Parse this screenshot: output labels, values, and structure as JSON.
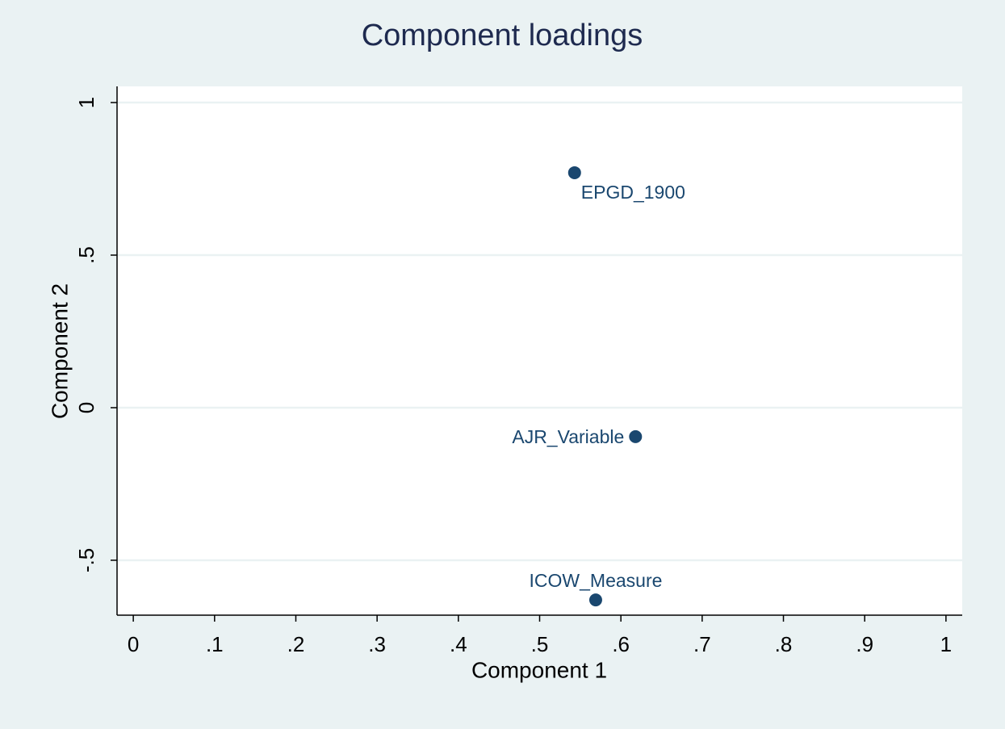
{
  "chart_data": {
    "type": "scatter",
    "title": "Component loadings",
    "x_label": "Component 1",
    "y_label": "Component 2",
    "labels": [
      "EPGD_1900",
      "AJR_Variable",
      "ICOW_Measure"
    ],
    "x": [
      0.543,
      0.618,
      0.569
    ],
    "values": [
      0.77,
      -0.095,
      -0.63
    ],
    "color": "#1a476f",
    "xlim": [
      -0.02,
      1.02
    ],
    "xticks": [
      0,
      {
        "value": 0.1,
        "label": ".1"
      },
      {
        "value": 0.2,
        "label": ".2"
      },
      {
        "value": 0.3,
        "label": ".3"
      },
      {
        "value": 0.4,
        "label": ".4"
      },
      {
        "value": 0.5,
        "label": ".5"
      },
      {
        "value": 0.6,
        "label": ".6"
      },
      {
        "value": 0.7,
        "label": ".7"
      },
      {
        "value": 0.8,
        "label": ".8"
      },
      {
        "value": 0.9,
        "label": ".9"
      },
      1
    ],
    "ylim": [
      -0.68,
      1.053
    ],
    "yticks": [
      {
        "value": -0.5,
        "label": "-.5"
      },
      0,
      {
        "value": 0.5,
        "label": ".5"
      },
      1
    ],
    "grid": true
  }
}
